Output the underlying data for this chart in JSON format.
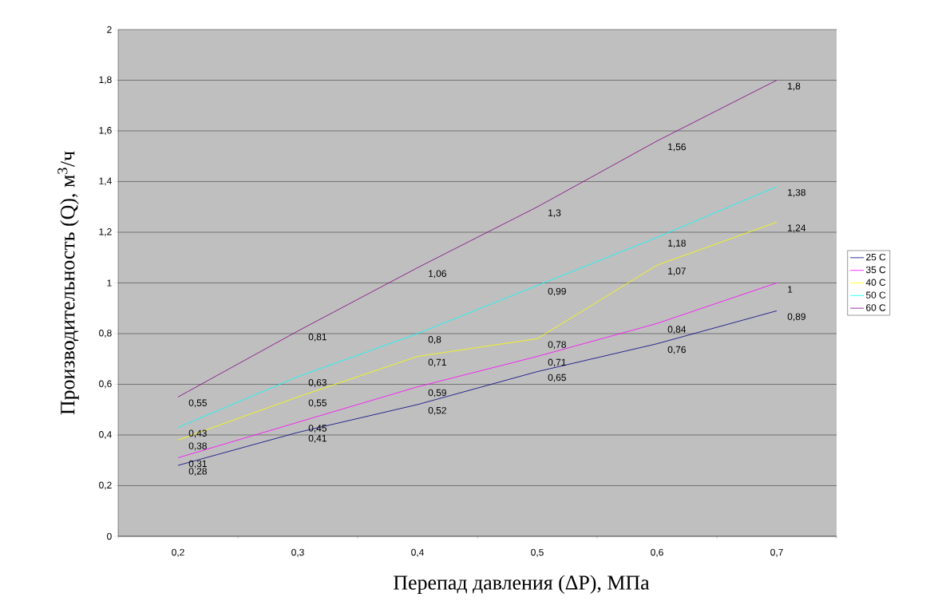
{
  "chart_data": {
    "type": "line",
    "xlabel": "Перепад давления (ΔP), МПа",
    "ylabel": "Производительность (Q), м$^{3}$/ч",
    "categories": [
      "0,2",
      "0,3",
      "0,4",
      "0,5",
      "0,6",
      "0,7"
    ],
    "series": [
      {
        "name": "25 C",
        "color": "#000080",
        "values": [
          0.28,
          0.41,
          0.52,
          0.65,
          0.76,
          0.89
        ],
        "value_labels": [
          "0,28",
          "0,41",
          "0,52",
          "0,65",
          "0,76",
          "0,89"
        ]
      },
      {
        "name": "35 C",
        "color": "#ff00ff",
        "values": [
          0.31,
          0.45,
          0.59,
          0.71,
          0.84,
          1
        ],
        "value_labels": [
          "0,31",
          "0,45",
          "0,59",
          "0,71",
          "0,84",
          "1"
        ]
      },
      {
        "name": "40 C",
        "color": "#ffff00",
        "values": [
          0.38,
          0.55,
          0.71,
          0.78,
          1.07,
          1.24
        ],
        "value_labels": [
          "0,38",
          "0,55",
          "0,71",
          "0,78",
          "1,07",
          "1,24"
        ]
      },
      {
        "name": "50 C",
        "color": "#00ffff",
        "values": [
          0.43,
          0.63,
          0.8,
          0.99,
          1.18,
          1.38
        ],
        "value_labels": [
          "0,43",
          "0,63",
          "0,8",
          "0,99",
          "1,18",
          "1,38"
        ]
      },
      {
        "name": "60 C",
        "color": "#800080",
        "values": [
          0.55,
          0.81,
          1.06,
          1.3,
          1.56,
          1.8
        ],
        "value_labels": [
          "0,55",
          "0,81",
          "1,06",
          "1,3",
          "1,56",
          "1,8"
        ]
      }
    ],
    "ylim": [
      0,
      2
    ],
    "yticks": [
      0,
      {
        "value": 0.2,
        "label": "0,2"
      },
      {
        "value": 0.4,
        "label": "0,4"
      },
      {
        "value": 0.6,
        "label": "0,6"
      },
      {
        "value": 0.8,
        "label": "0,8"
      },
      1,
      {
        "value": 1.2,
        "label": "1,2"
      },
      {
        "value": 1.4,
        "label": "1,4"
      },
      {
        "value": 1.6,
        "label": "1,6"
      },
      {
        "value": 1.8,
        "label": "1,8"
      },
      2
    ],
    "grid": "y",
    "legend": "right",
    "marker": "none"
  }
}
